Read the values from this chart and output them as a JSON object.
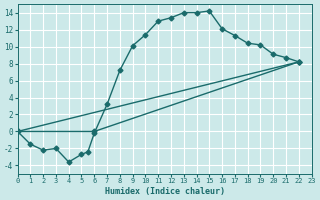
{
  "xlabel": "Humidex (Indice chaleur)",
  "bg_color": "#cce9e9",
  "grid_color": "#ffffff",
  "line_color": "#1a6b6b",
  "xlim": [
    0,
    23
  ],
  "ylim": [
    -5,
    15
  ],
  "yticks": [
    -4,
    -2,
    0,
    2,
    4,
    6,
    8,
    10,
    12,
    14
  ],
  "xticks": [
    0,
    1,
    2,
    3,
    4,
    5,
    6,
    7,
    8,
    9,
    10,
    11,
    12,
    13,
    14,
    15,
    16,
    17,
    18,
    19,
    20,
    21,
    22,
    23
  ],
  "line1_x": [
    0,
    1,
    2,
    3,
    4,
    5,
    5.5,
    6,
    7,
    8,
    9,
    10,
    11,
    12,
    13,
    14,
    15,
    16,
    17,
    18,
    19,
    20,
    21,
    22
  ],
  "line1_y": [
    0,
    -1.5,
    -2.2,
    -2.0,
    -3.6,
    -2.7,
    -2.4,
    -0.2,
    3.2,
    7.2,
    10.1,
    11.4,
    13.0,
    13.4,
    14.0,
    14.0,
    14.2,
    12.1,
    11.3,
    10.4,
    10.2,
    9.1,
    8.7,
    8.2
  ],
  "line2_x": [
    0,
    22
  ],
  "line2_y": [
    0,
    8.2
  ],
  "line3_x": [
    0,
    6,
    22
  ],
  "line3_y": [
    0,
    0,
    8.2
  ],
  "marker": "D",
  "marker_size": 2.5,
  "line_width": 1.0
}
